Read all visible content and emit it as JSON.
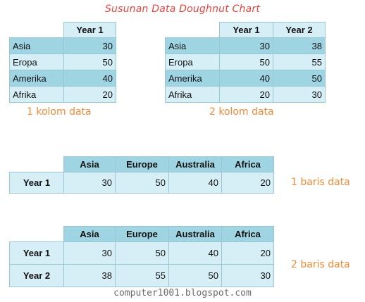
{
  "title": "Susunan Data Doughnut Chart",
  "footer": "computer1001.blogspot.com",
  "table_one_column": {
    "headers": [
      "Year 1"
    ],
    "rows": [
      {
        "name": "Asia",
        "values": [
          "30"
        ]
      },
      {
        "name": "Eropa",
        "values": [
          "50"
        ]
      },
      {
        "name": "Amerika",
        "values": [
          "40"
        ]
      },
      {
        "name": "Afrika",
        "values": [
          "20"
        ]
      }
    ],
    "label": "1 kolom data"
  },
  "table_two_columns": {
    "headers": [
      "Year 1",
      "Year 2"
    ],
    "rows": [
      {
        "name": "Asia",
        "values": [
          "30",
          "38"
        ]
      },
      {
        "name": "Eropa",
        "values": [
          "50",
          "55"
        ]
      },
      {
        "name": "Amerika",
        "values": [
          "40",
          "50"
        ]
      },
      {
        "name": "Afrika",
        "values": [
          "20",
          "30"
        ]
      }
    ],
    "label": "2 kolom data"
  },
  "table_one_row": {
    "headers": [
      "Asia",
      "Europe",
      "Australia",
      "Africa"
    ],
    "rows": [
      {
        "name": "Year 1",
        "values": [
          "30",
          "50",
          "40",
          "20"
        ]
      }
    ],
    "label": "1 baris data"
  },
  "table_two_rows": {
    "headers": [
      "Asia",
      "Europe",
      "Australia",
      "Africa"
    ],
    "rows": [
      {
        "name": "Year 1",
        "values": [
          "30",
          "50",
          "40",
          "20"
        ]
      },
      {
        "name": "Year 2",
        "values": [
          "38",
          "55",
          "50",
          "30"
        ]
      }
    ],
    "label": "2 baris data"
  },
  "colors": {
    "header_fill": "#9fd4e2",
    "cell_fill_dark": "#9fd4e2",
    "cell_fill_light": "#d6eef5",
    "grid": "#9bc7d3",
    "title_color": "#e8423d",
    "label_color": "#f28a36",
    "footer_color": "#6b6b6b"
  }
}
